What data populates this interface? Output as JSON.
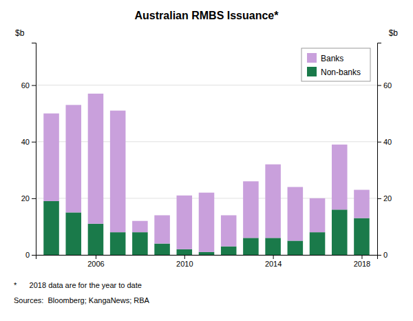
{
  "chart_data": {
    "type": "bar",
    "title": "Australian RMBS Issuance*",
    "stacked": true,
    "x": [
      2004,
      2005,
      2006,
      2007,
      2008,
      2009,
      2010,
      2011,
      2012,
      2013,
      2014,
      2015,
      2016,
      2017,
      2018
    ],
    "series": [
      {
        "name": "Non-banks",
        "color": "#1a7a4a",
        "values": [
          19,
          15,
          11,
          8,
          8,
          4,
          2,
          1,
          3,
          6,
          6,
          5,
          8,
          16,
          13
        ]
      },
      {
        "name": "Banks",
        "color": "#c9a0dc",
        "values": [
          31,
          38,
          46,
          43,
          4,
          10,
          19,
          21,
          11,
          20,
          26,
          19,
          12,
          23,
          10
        ]
      }
    ],
    "xlim": [
      2003.3,
      2018.7
    ],
    "xticks": [
      2006,
      2010,
      2014,
      2018
    ],
    "ylim": [
      0,
      75
    ],
    "yticks": [
      0,
      20,
      40,
      60
    ],
    "y2lim": [
      0,
      75
    ],
    "y2ticks": [
      0,
      20,
      40,
      60
    ],
    "y_label": "$b",
    "y2_label": "$b",
    "grid": true,
    "legend": "upper right",
    "annotations": [
      "*      2018 data are for the year to date",
      "Sources:  Bloomberg; KangaNews; RBA"
    ]
  }
}
